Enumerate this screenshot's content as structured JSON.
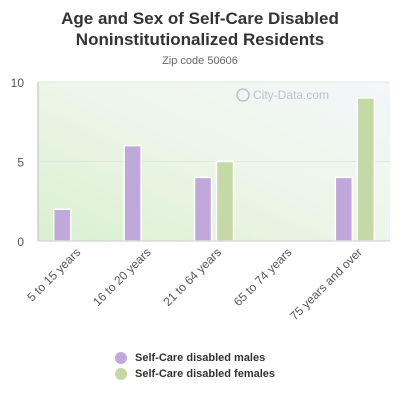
{
  "chart_data": {
    "type": "bar",
    "title": "Age and Sex of Self-Care Disabled Noninstitutionalized Residents",
    "subtitle": "Zip code 50606",
    "watermark": "City-Data.com",
    "categories": [
      "5 to 15 years",
      "16 to 20 years",
      "21 to 64 years",
      "65 to 74 years",
      "75 years and over"
    ],
    "series": [
      {
        "name": "Self-Care disabled males",
        "color": "#c0a8da",
        "values": [
          2,
          6,
          4,
          0,
          4
        ]
      },
      {
        "name": "Self-Care disabled females",
        "color": "#c4d9a6",
        "values": [
          0,
          0,
          5,
          0,
          9
        ]
      }
    ],
    "yticks": [
      0,
      5,
      10
    ],
    "ylim": [
      0,
      10
    ],
    "grid": true,
    "legend_position": "bottom"
  }
}
